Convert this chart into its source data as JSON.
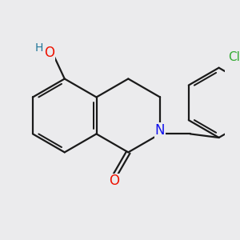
{
  "background_color": "#ebebed",
  "bond_color": "#1a1a1a",
  "bond_width": 1.6,
  "atom_colors": {
    "O": "#ee1100",
    "N": "#1111ee",
    "Cl": "#33aa33",
    "H": "#227799"
  },
  "font_size": 11,
  "figsize": [
    3.0,
    3.0
  ],
  "dpi": 100
}
